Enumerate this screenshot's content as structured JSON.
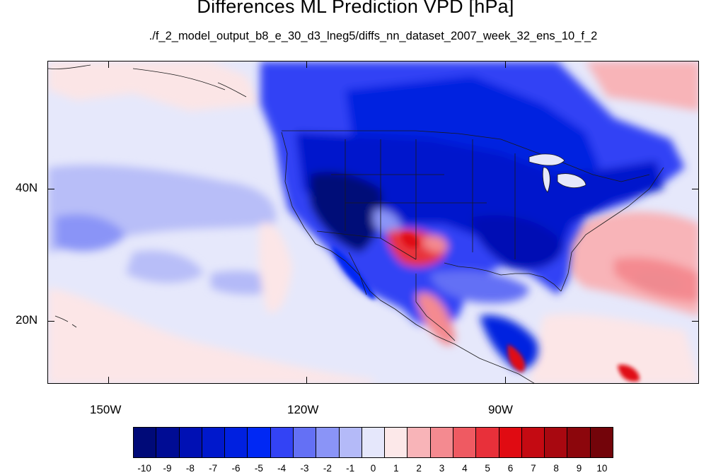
{
  "title": "Differences ML Prediction VPD [hPa]",
  "subtitle": "./f_2_model_output_b8_e_30_d3_lneg5/diffs_nn_dataset_2007_week_32_ens_10_f_2",
  "map": {
    "projection": "cylindrical equidistant",
    "lon_range": [
      -160,
      -62
    ],
    "lat_range": [
      11,
      60
    ],
    "lat_labels": [
      "40N",
      "20N"
    ],
    "lon_labels": [
      "150W",
      "120W",
      "90W"
    ]
  },
  "colorbar": {
    "labels": [
      "-10",
      "-9",
      "-8",
      "-7",
      "-6",
      "-5",
      "-4",
      "-3",
      "-2",
      "-1",
      "0",
      "1",
      "2",
      "3",
      "4",
      "5",
      "6",
      "7",
      "8",
      "9",
      "10"
    ],
    "colors": [
      "#000a78",
      "#000c94",
      "#0010b4",
      "#0018cc",
      "#0020e0",
      "#0028f4",
      "#3343f5",
      "#6470f5",
      "#8a94f7",
      "#b4baf8",
      "#e5e7fb",
      "#fce8e9",
      "#f8b4b8",
      "#f48a90",
      "#ef5a62",
      "#e8303a",
      "#e00b12",
      "#c40a12",
      "#a80810",
      "#8c060c",
      "#73040a"
    ]
  }
}
